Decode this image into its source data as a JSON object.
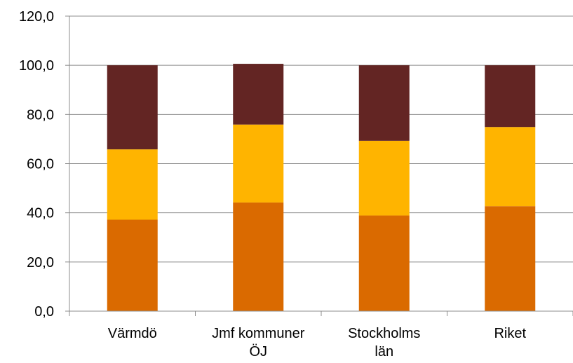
{
  "chart_data": {
    "type": "bar",
    "stacked": true,
    "title": "",
    "xlabel": "",
    "ylabel": "",
    "categories": [
      [
        "Värmdö"
      ],
      [
        "Jmf kommuner",
        "ÖJ"
      ],
      [
        "Stockholms",
        "län"
      ],
      [
        "Riket"
      ]
    ],
    "series": [
      {
        "color": "#DA6A00",
        "values": [
          37.2,
          44.2,
          38.9,
          42.7
        ]
      },
      {
        "color": "#FFB400",
        "values": [
          28.6,
          31.7,
          30.4,
          32.2
        ]
      },
      {
        "color": "#632523",
        "values": [
          34.2,
          24.7,
          30.7,
          25.1
        ]
      }
    ],
    "ylim": [
      0,
      120
    ],
    "yticks": [
      "0,0",
      "20,0",
      "40,0",
      "60,0",
      "80,0",
      "100,0",
      "120,0"
    ],
    "ytick_values": [
      0,
      20,
      40,
      60,
      80,
      100,
      120
    ],
    "grid": true,
    "legend": "none"
  }
}
